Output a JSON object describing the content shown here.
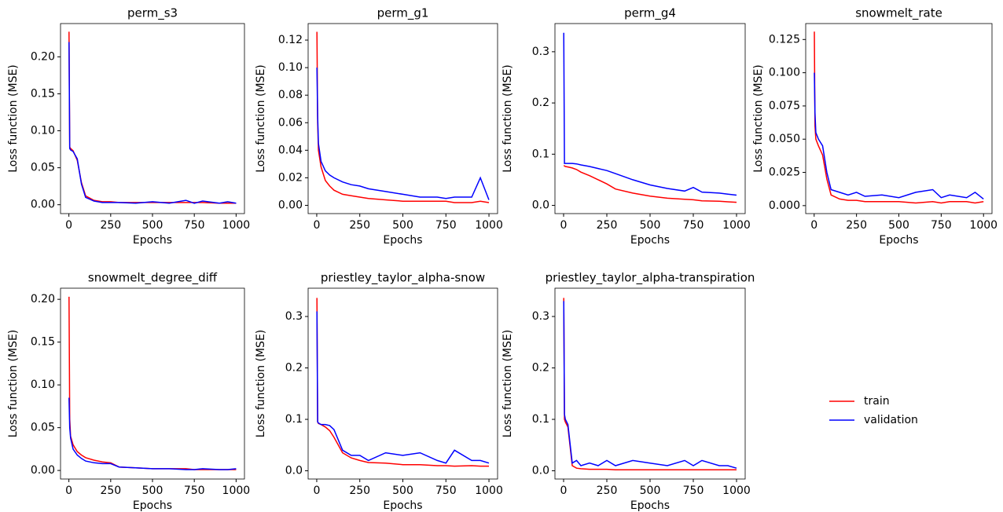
{
  "chart_data": [
    {
      "type": "line",
      "title": "perm_s3",
      "xlabel": "Epochs",
      "ylabel": "Loss function (MSE)",
      "x": [
        1,
        5,
        10,
        25,
        50,
        75,
        100,
        150,
        200,
        250,
        300,
        400,
        500,
        600,
        700,
        750,
        800,
        900,
        950,
        1000
      ],
      "xlim": [
        -50,
        1050
      ],
      "xticks": [
        0,
        250,
        500,
        750,
        1000
      ],
      "ylim": [
        -0.012,
        0.245
      ],
      "yticks": [
        {
          "value": 0,
          "label": "0.00"
        },
        0.05,
        {
          "value": 0.1,
          "label": "0.10"
        },
        0.15,
        {
          "value": 0.2,
          "label": "0.20"
        }
      ],
      "series": [
        {
          "name": "train",
          "color": "#ff0000",
          "values": [
            0.234,
            0.078,
            0.076,
            0.073,
            0.06,
            0.03,
            0.012,
            0.006,
            0.004,
            0.004,
            0.003,
            0.003,
            0.003,
            0.003,
            0.003,
            0.003,
            0.003,
            0.002,
            0.002,
            0.002
          ]
        },
        {
          "name": "validation",
          "color": "#0000ff",
          "values": [
            0.22,
            0.076,
            0.074,
            0.072,
            0.062,
            0.028,
            0.01,
            0.005,
            0.003,
            0.003,
            0.003,
            0.002,
            0.004,
            0.002,
            0.006,
            0.002,
            0.005,
            0.002,
            0.004,
            0.002
          ]
        }
      ]
    },
    {
      "type": "line",
      "title": "perm_g1",
      "xlabel": "Epochs",
      "ylabel": "Loss function (MSE)",
      "x": [
        1,
        5,
        10,
        25,
        50,
        75,
        100,
        150,
        200,
        250,
        300,
        400,
        500,
        600,
        700,
        750,
        800,
        900,
        950,
        1000
      ],
      "xlim": [
        -50,
        1050
      ],
      "xticks": [
        0,
        250,
        500,
        750,
        1000
      ],
      "ylim": [
        -0.006,
        0.132
      ],
      "yticks": [
        {
          "value": 0,
          "label": "0.00"
        },
        0.02,
        0.04,
        0.06,
        0.08,
        {
          "value": 0.1,
          "label": "0.10"
        },
        0.12
      ],
      "series": [
        {
          "name": "train",
          "color": "#ff0000",
          "values": [
            0.126,
            0.06,
            0.04,
            0.028,
            0.018,
            0.014,
            0.011,
            0.008,
            0.007,
            0.006,
            0.005,
            0.004,
            0.003,
            0.003,
            0.003,
            0.003,
            0.002,
            0.002,
            0.003,
            0.002
          ]
        },
        {
          "name": "validation",
          "color": "#0000ff",
          "values": [
            0.1,
            0.065,
            0.045,
            0.032,
            0.025,
            0.022,
            0.02,
            0.017,
            0.015,
            0.014,
            0.012,
            0.01,
            0.008,
            0.006,
            0.006,
            0.005,
            0.006,
            0.006,
            0.02,
            0.004
          ]
        }
      ]
    },
    {
      "type": "line",
      "title": "perm_g4",
      "xlabel": "Epochs",
      "ylabel": "Loss function (MSE)",
      "x": [
        1,
        5,
        10,
        25,
        50,
        75,
        100,
        150,
        200,
        250,
        300,
        400,
        500,
        600,
        700,
        750,
        800,
        900,
        950,
        1000
      ],
      "xlim": [
        -50,
        1050
      ],
      "xticks": [
        0,
        250,
        500,
        750,
        1000
      ],
      "ylim": [
        -0.016,
        0.355
      ],
      "yticks": [
        {
          "value": 0,
          "label": "0.0"
        },
        0.1,
        0.2,
        0.3
      ],
      "series": [
        {
          "name": "train",
          "color": "#ff0000",
          "values": [
            0.078,
            0.077,
            0.076,
            0.075,
            0.073,
            0.07,
            0.065,
            0.058,
            0.05,
            0.042,
            0.032,
            0.024,
            0.018,
            0.014,
            0.012,
            0.011,
            0.009,
            0.008,
            0.007,
            0.006
          ]
        },
        {
          "name": "validation",
          "color": "#0000ff",
          "values": [
            0.337,
            0.082,
            0.082,
            0.082,
            0.082,
            0.081,
            0.079,
            0.076,
            0.072,
            0.068,
            0.062,
            0.05,
            0.04,
            0.033,
            0.028,
            0.035,
            0.026,
            0.024,
            0.022,
            0.02
          ]
        }
      ]
    },
    {
      "type": "line",
      "title": "snowmelt_rate",
      "xlabel": "Epochs",
      "ylabel": "Loss function (MSE)",
      "x": [
        1,
        5,
        10,
        25,
        50,
        75,
        100,
        150,
        200,
        250,
        300,
        400,
        500,
        600,
        700,
        750,
        800,
        900,
        950,
        1000
      ],
      "xlim": [
        -50,
        1050
      ],
      "xticks": [
        0,
        250,
        500,
        750,
        1000
      ],
      "ylim": [
        -0.006,
        0.137
      ],
      "yticks": [
        {
          "value": 0,
          "label": "0.000"
        },
        0.025,
        {
          "value": 0.05,
          "label": "0.050"
        },
        0.075,
        {
          "value": 0.1,
          "label": "0.100"
        },
        0.125
      ],
      "series": [
        {
          "name": "train",
          "color": "#ff0000",
          "values": [
            0.131,
            0.06,
            0.05,
            0.045,
            0.038,
            0.02,
            0.008,
            0.005,
            0.004,
            0.004,
            0.003,
            0.003,
            0.003,
            0.002,
            0.003,
            0.002,
            0.003,
            0.003,
            0.002,
            0.003
          ]
        },
        {
          "name": "validation",
          "color": "#0000ff",
          "values": [
            0.1,
            0.07,
            0.055,
            0.05,
            0.045,
            0.025,
            0.012,
            0.01,
            0.008,
            0.01,
            0.007,
            0.008,
            0.006,
            0.01,
            0.012,
            0.006,
            0.008,
            0.006,
            0.01,
            0.005
          ]
        }
      ]
    },
    {
      "type": "line",
      "title": "snowmelt_degree_diff",
      "xlabel": "Epochs",
      "ylabel": "Loss function (MSE)",
      "x": [
        1,
        5,
        10,
        25,
        50,
        75,
        100,
        150,
        200,
        250,
        300,
        400,
        500,
        600,
        700,
        750,
        800,
        900,
        950,
        1000
      ],
      "xlim": [
        -50,
        1050
      ],
      "xticks": [
        0,
        250,
        500,
        750,
        1000
      ],
      "ylim": [
        -0.01,
        0.213
      ],
      "yticks": [
        {
          "value": 0,
          "label": "0.00"
        },
        0.05,
        {
          "value": 0.1,
          "label": "0.10"
        },
        0.15,
        {
          "value": 0.2,
          "label": "0.20"
        }
      ],
      "series": [
        {
          "name": "train",
          "color": "#ff0000",
          "values": [
            0.203,
            0.06,
            0.04,
            0.03,
            0.022,
            0.018,
            0.015,
            0.012,
            0.01,
            0.009,
            0.004,
            0.003,
            0.002,
            0.002,
            0.002,
            0.001,
            0.001,
            0.001,
            0.001,
            0.001
          ]
        },
        {
          "name": "validation",
          "color": "#0000ff",
          "values": [
            0.085,
            0.05,
            0.038,
            0.025,
            0.018,
            0.014,
            0.011,
            0.009,
            0.008,
            0.008,
            0.004,
            0.003,
            0.002,
            0.002,
            0.001,
            0.001,
            0.002,
            0.001,
            0.001,
            0.002
          ]
        }
      ]
    },
    {
      "type": "line",
      "title": "priestley_taylor_alpha-snow",
      "xlabel": "Epochs",
      "ylabel": "Loss function (MSE)",
      "x": [
        1,
        5,
        10,
        25,
        50,
        75,
        100,
        150,
        200,
        250,
        300,
        400,
        500,
        600,
        700,
        750,
        800,
        900,
        950,
        1000
      ],
      "xlim": [
        -50,
        1050
      ],
      "xticks": [
        0,
        250,
        500,
        750,
        1000
      ],
      "ylim": [
        -0.016,
        0.355
      ],
      "yticks": [
        {
          "value": 0,
          "label": "0.0"
        },
        0.1,
        0.2,
        0.3
      ],
      "series": [
        {
          "name": "train",
          "color": "#ff0000",
          "values": [
            0.336,
            0.095,
            0.092,
            0.09,
            0.085,
            0.078,
            0.065,
            0.035,
            0.025,
            0.02,
            0.016,
            0.015,
            0.012,
            0.012,
            0.01,
            0.01,
            0.009,
            0.01,
            0.009,
            0.009
          ]
        },
        {
          "name": "validation",
          "color": "#0000ff",
          "values": [
            0.31,
            0.095,
            0.093,
            0.09,
            0.09,
            0.088,
            0.08,
            0.04,
            0.03,
            0.03,
            0.02,
            0.035,
            0.03,
            0.035,
            0.02,
            0.015,
            0.04,
            0.02,
            0.02,
            0.015
          ]
        }
      ]
    },
    {
      "type": "line",
      "title": "priestley_taylor_alpha-transpiration",
      "xlabel": "Epochs",
      "ylabel": "Loss function (MSE)",
      "x": [
        1,
        5,
        10,
        25,
        50,
        75,
        100,
        150,
        200,
        250,
        300,
        400,
        500,
        600,
        700,
        750,
        800,
        900,
        950,
        1000
      ],
      "xlim": [
        -50,
        1050
      ],
      "xticks": [
        0,
        250,
        500,
        750,
        1000
      ],
      "ylim": [
        -0.016,
        0.355
      ],
      "yticks": [
        {
          "value": 0,
          "label": "0.0"
        },
        0.1,
        0.2,
        0.3
      ],
      "series": [
        {
          "name": "train",
          "color": "#ff0000",
          "values": [
            0.336,
            0.1,
            0.095,
            0.085,
            0.01,
            0.005,
            0.004,
            0.003,
            0.003,
            0.003,
            0.002,
            0.002,
            0.002,
            0.002,
            0.002,
            0.002,
            0.002,
            0.002,
            0.002,
            0.002
          ]
        },
        {
          "name": "validation",
          "color": "#0000ff",
          "values": [
            0.33,
            0.11,
            0.1,
            0.09,
            0.015,
            0.02,
            0.01,
            0.015,
            0.01,
            0.02,
            0.01,
            0.02,
            0.015,
            0.01,
            0.02,
            0.01,
            0.02,
            0.01,
            0.01,
            0.005
          ]
        }
      ]
    }
  ]
}
